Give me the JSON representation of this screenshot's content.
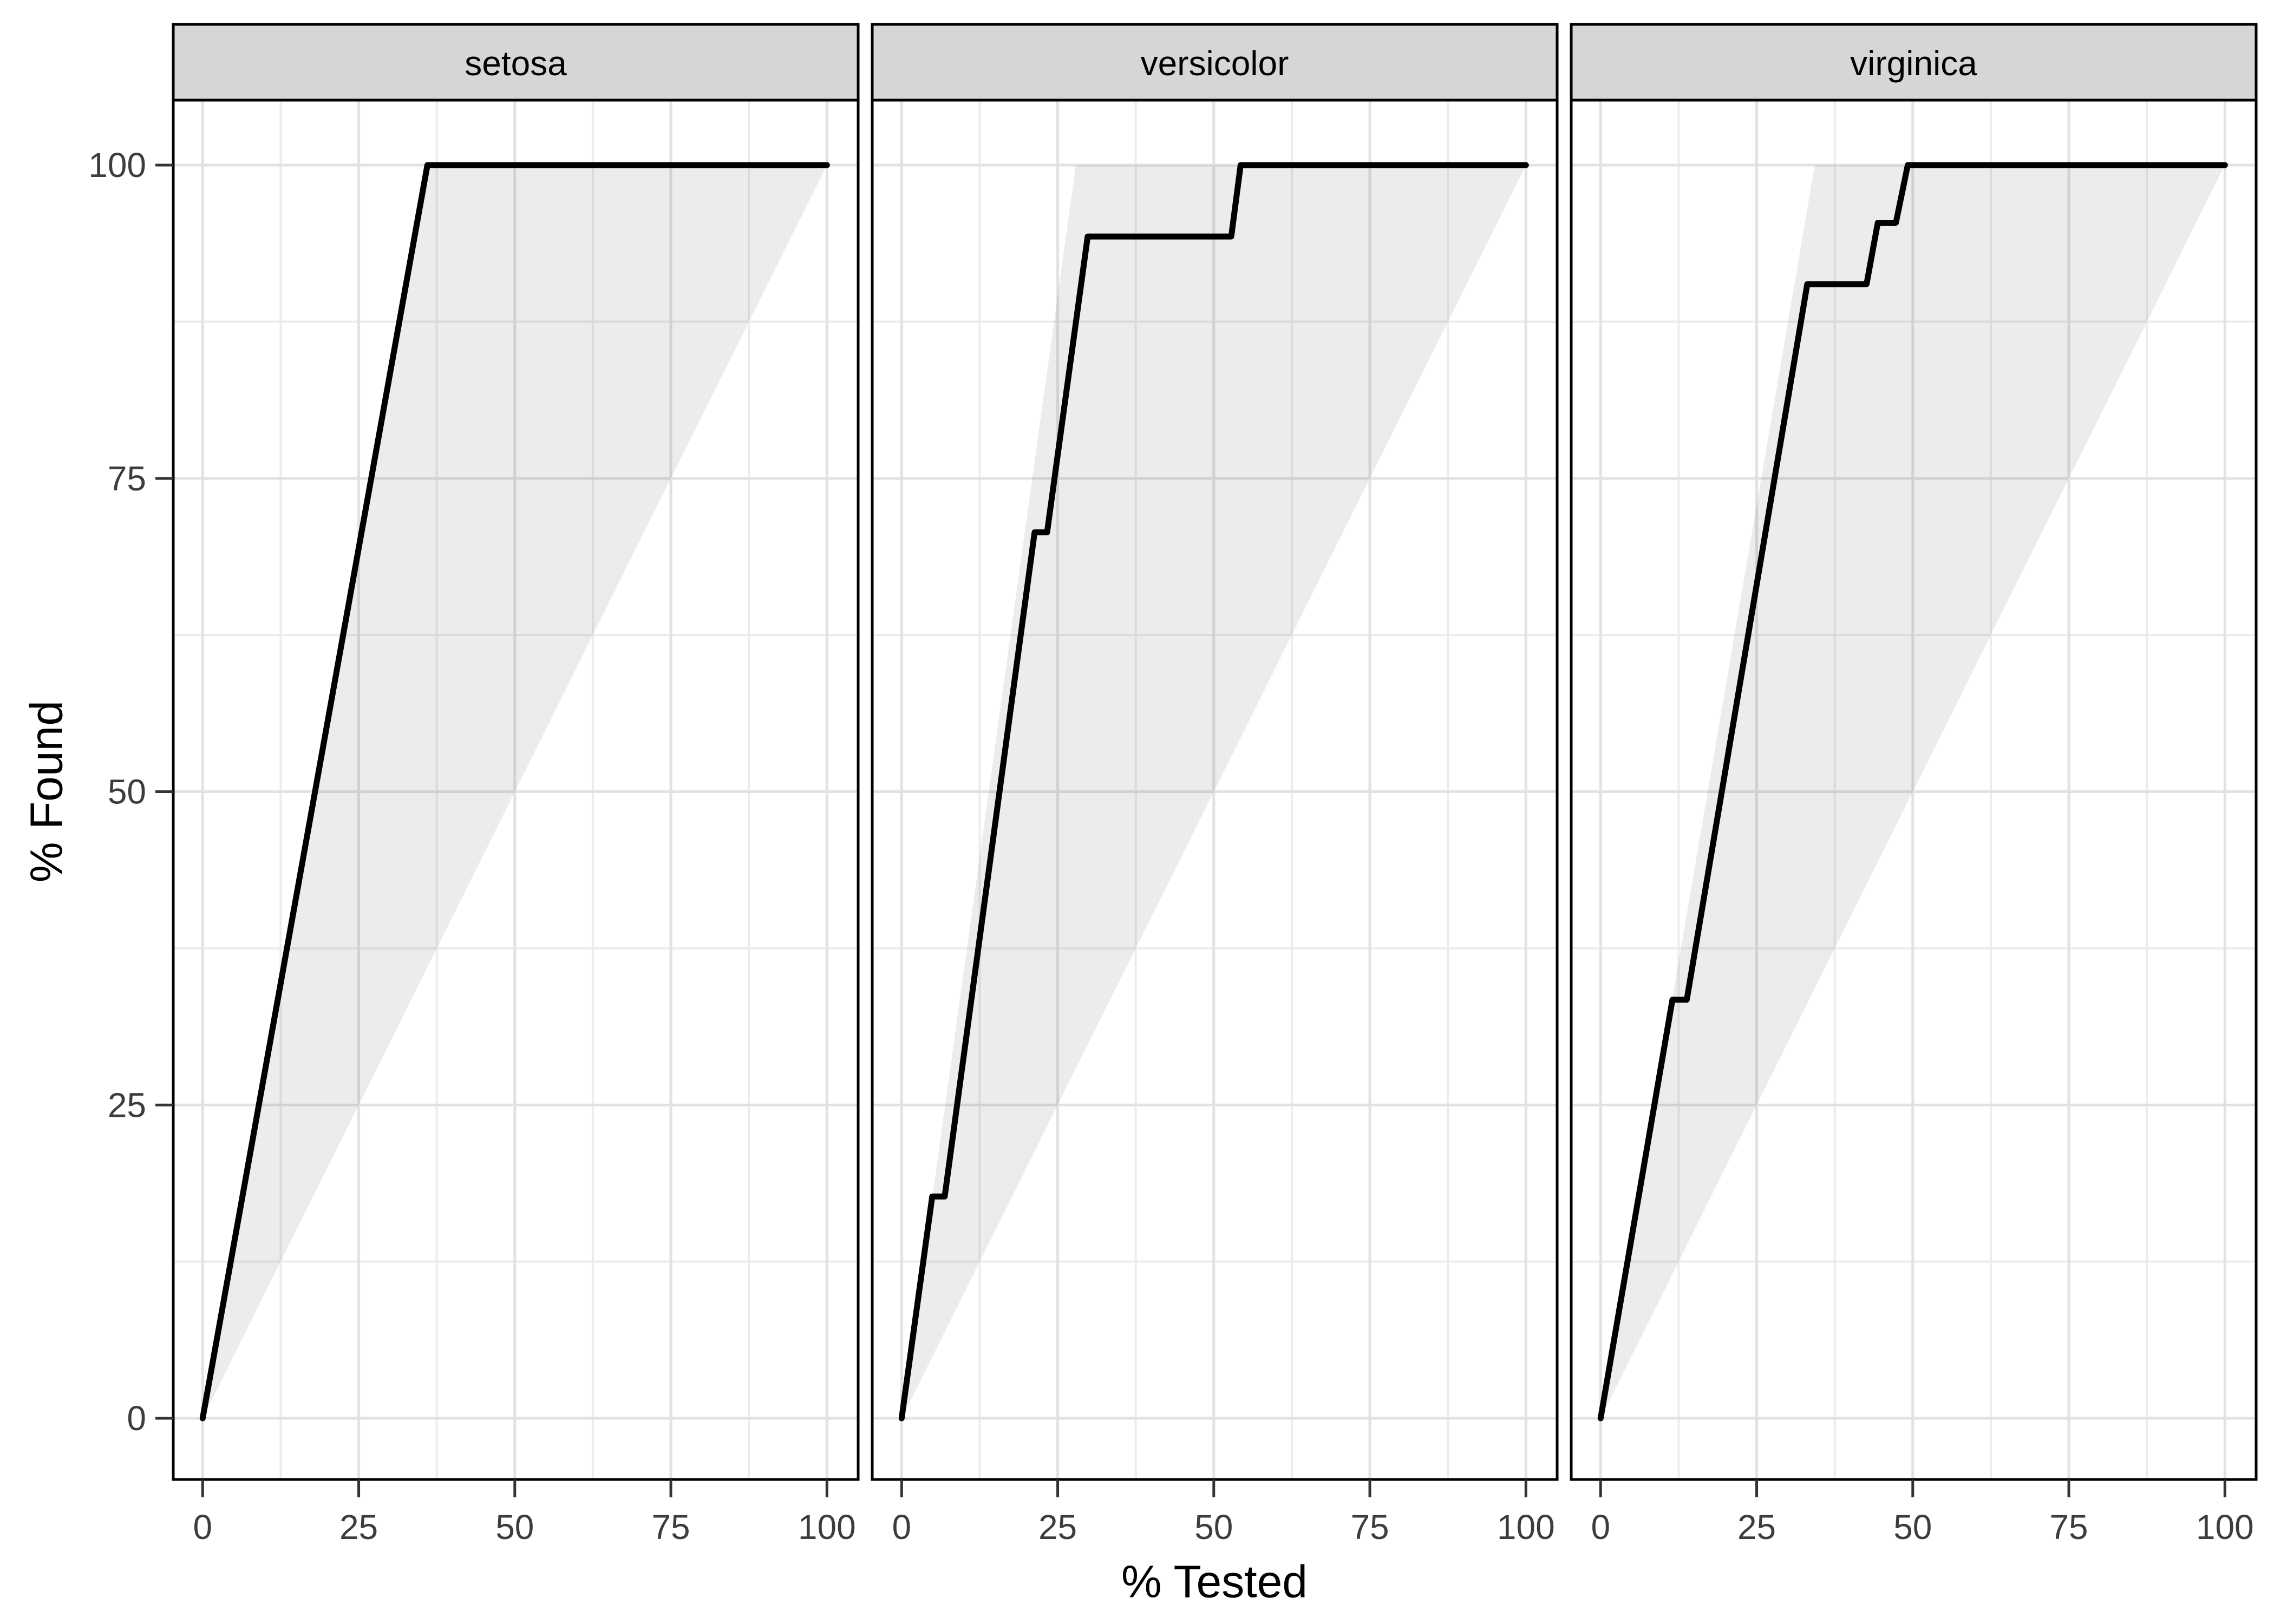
{
  "figure": {
    "type": "faceted gain curve plot (% Found vs % Tested)"
  },
  "chart_data": {
    "type": "line",
    "xlabel": "% Tested",
    "ylabel": "% Found",
    "xlim": [
      0,
      100
    ],
    "ylim": [
      0,
      100
    ],
    "x_ticks": [
      0,
      25,
      50,
      75,
      100
    ],
    "y_ticks": [
      0,
      25,
      50,
      75,
      100
    ],
    "x_minor_ticks": [
      12.5,
      37.5,
      62.5,
      87.5
    ],
    "y_minor_ticks": [
      12.5,
      37.5,
      62.5,
      87.5
    ],
    "grid": "major and minor gridlines, white panel background, black panel border",
    "legend_position": "none",
    "facets": [
      {
        "label": "setosa",
        "band_polygon": [
          [
            0,
            0
          ],
          [
            36,
            100
          ],
          [
            100,
            100
          ]
        ],
        "curve": [
          [
            0,
            0
          ],
          [
            36,
            100
          ],
          [
            100,
            100
          ]
        ]
      },
      {
        "label": "versicolor",
        "band_polygon": [
          [
            0,
            0
          ],
          [
            27.9,
            100
          ],
          [
            100,
            100
          ]
        ],
        "curve": [
          [
            0,
            0
          ],
          [
            4.9,
            17.7
          ],
          [
            6.9,
            17.7
          ],
          [
            21.3,
            70.7
          ],
          [
            23.3,
            70.7
          ],
          [
            29.8,
            94.3
          ],
          [
            52.8,
            94.3
          ],
          [
            54.3,
            100
          ],
          [
            100,
            100
          ]
        ]
      },
      {
        "label": "virginica",
        "band_polygon": [
          [
            0,
            0
          ],
          [
            34.3,
            100
          ],
          [
            100,
            100
          ]
        ],
        "curve": [
          [
            0,
            0
          ],
          [
            11.5,
            33.4
          ],
          [
            13.8,
            33.4
          ],
          [
            33.1,
            90.5
          ],
          [
            42.6,
            90.5
          ],
          [
            44.4,
            95.4
          ],
          [
            47.3,
            95.4
          ],
          [
            49.2,
            100
          ],
          [
            100,
            100
          ]
        ]
      }
    ],
    "colors": {
      "curve": "#000000",
      "band_fill": "rgba(0,0,0,0.075)",
      "grid_major": "#E2E2E2",
      "grid_minor": "#ECECEC",
      "panel_border": "#000000",
      "strip_fill": "#D6D6D6",
      "strip_border": "#000000",
      "strip_text": "#000000",
      "tick_text": "#3D3D3D",
      "tick_mark": "#333333",
      "axis_title_text": "#000000"
    }
  }
}
